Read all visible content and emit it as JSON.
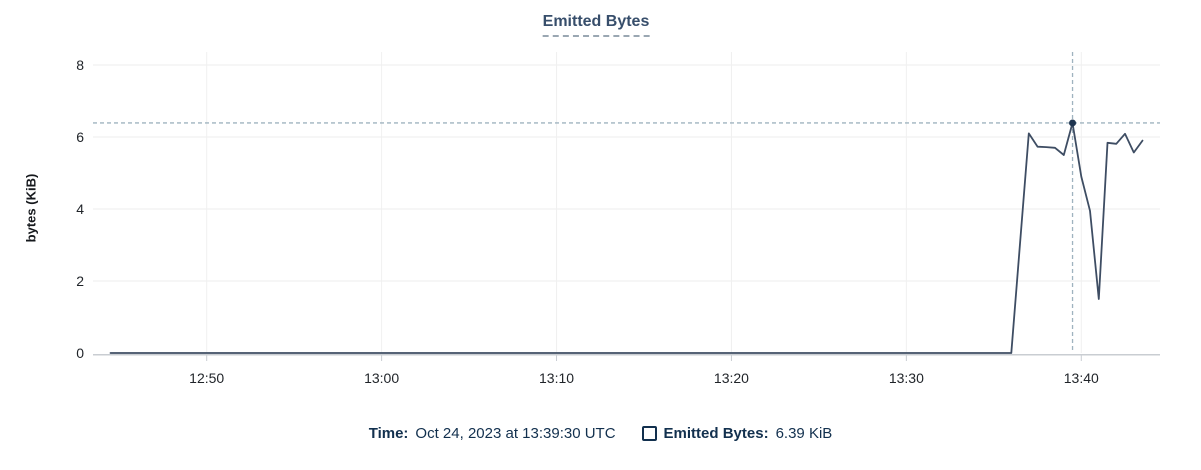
{
  "chart_data": {
    "type": "line",
    "title": "Emitted Bytes",
    "xlabel": "",
    "ylabel": "bytes (KiB)",
    "ylim": [
      0,
      8
    ],
    "yticks": [
      0,
      2,
      4,
      6,
      8
    ],
    "xticks": [
      "12:50",
      "13:00",
      "13:10",
      "13:20",
      "13:30",
      "13:40"
    ],
    "x_domain": [
      "12:43:30",
      "13:44:30"
    ],
    "grid": true,
    "legend_position": "bottom",
    "series": [
      {
        "name": "Emitted Bytes",
        "points": [
          [
            "12:44:30",
            0
          ],
          [
            "13:36:00",
            0
          ],
          [
            "13:37:00",
            6.1
          ],
          [
            "13:37:30",
            5.73
          ],
          [
            "13:38:00",
            5.72
          ],
          [
            "13:38:30",
            5.7
          ],
          [
            "13:39:00",
            5.5
          ],
          [
            "13:39:30",
            6.39
          ],
          [
            "13:40:00",
            4.9
          ],
          [
            "13:40:30",
            3.95
          ],
          [
            "13:41:00",
            1.5
          ],
          [
            "13:41:30",
            5.84
          ],
          [
            "13:42:00",
            5.81
          ],
          [
            "13:42:30",
            6.09
          ],
          [
            "13:43:00",
            5.57
          ],
          [
            "13:43:30",
            5.9
          ]
        ]
      }
    ],
    "crosshair": {
      "x": "13:39:30",
      "y": 6.39
    }
  },
  "legend": {
    "time_label": "Time:",
    "time_value": "Oct 24, 2023 at 13:39:30 UTC",
    "series_label": "Emitted Bytes:",
    "series_value": "6.39 KiB"
  },
  "colors": {
    "line": "#3E4D63",
    "marker": "#1F3550",
    "crosshair": "#9FB3BF",
    "grid_h": "#EDEDED",
    "grid_v": "#F0F0F0",
    "axis": "#C9CDD2",
    "tick_text": "#1F2328",
    "title_text": "#374E6B",
    "legend_text": "#12304E"
  }
}
